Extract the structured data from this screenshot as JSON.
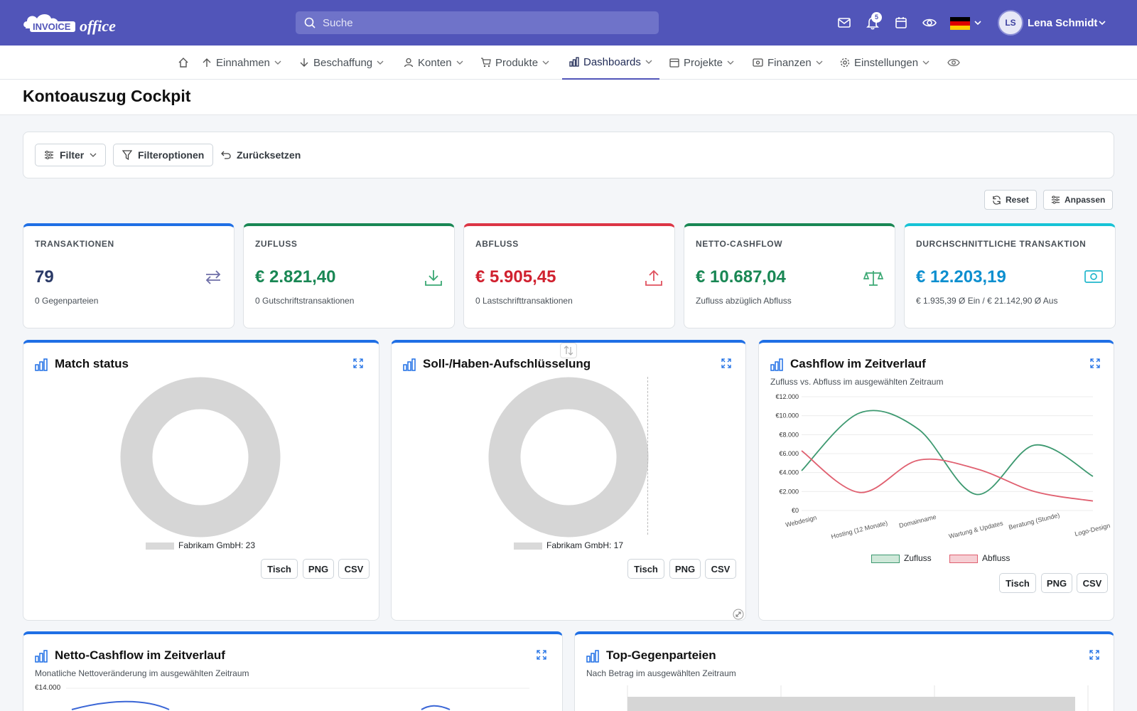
{
  "header": {
    "logo_text_invoice": "INVOICE",
    "logo_text_office": "office",
    "search_placeholder": "Suche",
    "notification_count": "5",
    "user_initials": "LS",
    "user_name": "Lena Schmidt"
  },
  "nav": {
    "items": [
      {
        "label": "Einnahmen"
      },
      {
        "label": "Beschaffung"
      },
      {
        "label": "Konten"
      },
      {
        "label": "Produkte"
      },
      {
        "label": "Dashboards",
        "active": true
      },
      {
        "label": "Projekte"
      },
      {
        "label": "Finanzen"
      },
      {
        "label": "Einstellungen"
      }
    ]
  },
  "page": {
    "title": "Kontoauszug Cockpit"
  },
  "filters": {
    "filter": "Filter",
    "options": "Filteroptionen",
    "reset": "Zurücksetzen"
  },
  "actions": {
    "reset": "Reset",
    "customize": "Anpassen"
  },
  "kpis": [
    {
      "label": "TRANSAKTIONEN",
      "value": "79",
      "sub": "0 Gegenparteien",
      "color": "#1f6fe5",
      "value_color": "#2b3a67",
      "icon": "transfer-icon"
    },
    {
      "label": "ZUFLUSS",
      "value": "€ 2.821,40",
      "sub": "0 Gutschriftstransaktionen",
      "color": "#198754",
      "value_color": "#198754",
      "icon": "download-icon"
    },
    {
      "label": "ABFLUSS",
      "value": "€ 5.905,45",
      "sub": "0 Lastschrifttransaktionen",
      "color": "#dc3545",
      "value_color": "#d0212f",
      "icon": "upload-icon"
    },
    {
      "label": "NETTO-CASHFLOW",
      "value": "€ 10.687,04",
      "sub": "Zufluss abzüglich Abfluss",
      "color": "#198754",
      "value_color": "#198754",
      "icon": "scale-icon"
    },
    {
      "label": "DURCHSCHNITTLICHE TRANSAKTION",
      "value": "€ 12.203,19",
      "sub": "€ 1.935,39 Ø Ein / € 21.142,90 Ø Aus",
      "color": "#17c3d6",
      "value_color": "#0d8fcf",
      "icon": "money-icon"
    }
  ],
  "cards": {
    "match_status": {
      "title": "Match status",
      "legend": "Fabrikam GmbH: 23"
    },
    "soll_haben": {
      "title": "Soll-/Haben-Aufschlüsselung",
      "legend": "Fabrikam GmbH: 17"
    },
    "cashflow": {
      "title": "Cashflow im Zeitverlauf",
      "subtitle": "Zufluss vs. Abfluss im ausgewählten Zeitraum"
    },
    "netto": {
      "title": "Netto-Cashflow im Zeitverlauf",
      "subtitle": "Monatliche Nettoveränderung im ausgewählten Zeitraum",
      "top_tick": "€14.000"
    },
    "top": {
      "title": "Top-Gegenparteien",
      "subtitle": "Nach Betrag im ausgewählten Zeitraum"
    }
  },
  "export": {
    "table": "Tisch",
    "png": "PNG",
    "csv": "CSV"
  },
  "chart_data": [
    {
      "type": "line",
      "title": "Cashflow im Zeitverlauf",
      "categories": [
        "Webdesign",
        "Hosting (12 Monate)",
        "Domainname",
        "Wartung & Updates",
        "Beratung (Stunde)",
        "Logo-Design"
      ],
      "ylim": [
        0,
        12000
      ],
      "y_ticks": [
        "€0",
        "€2.000",
        "€4.000",
        "€6.000",
        "€8.000",
        "€10.000",
        "€12.000"
      ],
      "series": [
        {
          "name": "Zufluss",
          "color": "#3d9970",
          "values": [
            4200,
            10300,
            8600,
            1700,
            6900,
            3600
          ]
        },
        {
          "name": "Abfluss",
          "color": "#e06070",
          "values": [
            6300,
            1900,
            5300,
            4400,
            2000,
            1000
          ]
        }
      ],
      "legend": "bottom"
    },
    {
      "type": "pie",
      "title": "Match status",
      "labels": [
        "Fabrikam GmbH"
      ],
      "values": [
        23
      ]
    },
    {
      "type": "pie",
      "title": "Soll-/Haben-Aufschlüsselung",
      "labels": [
        "Fabrikam GmbH"
      ],
      "values": [
        17
      ]
    }
  ]
}
